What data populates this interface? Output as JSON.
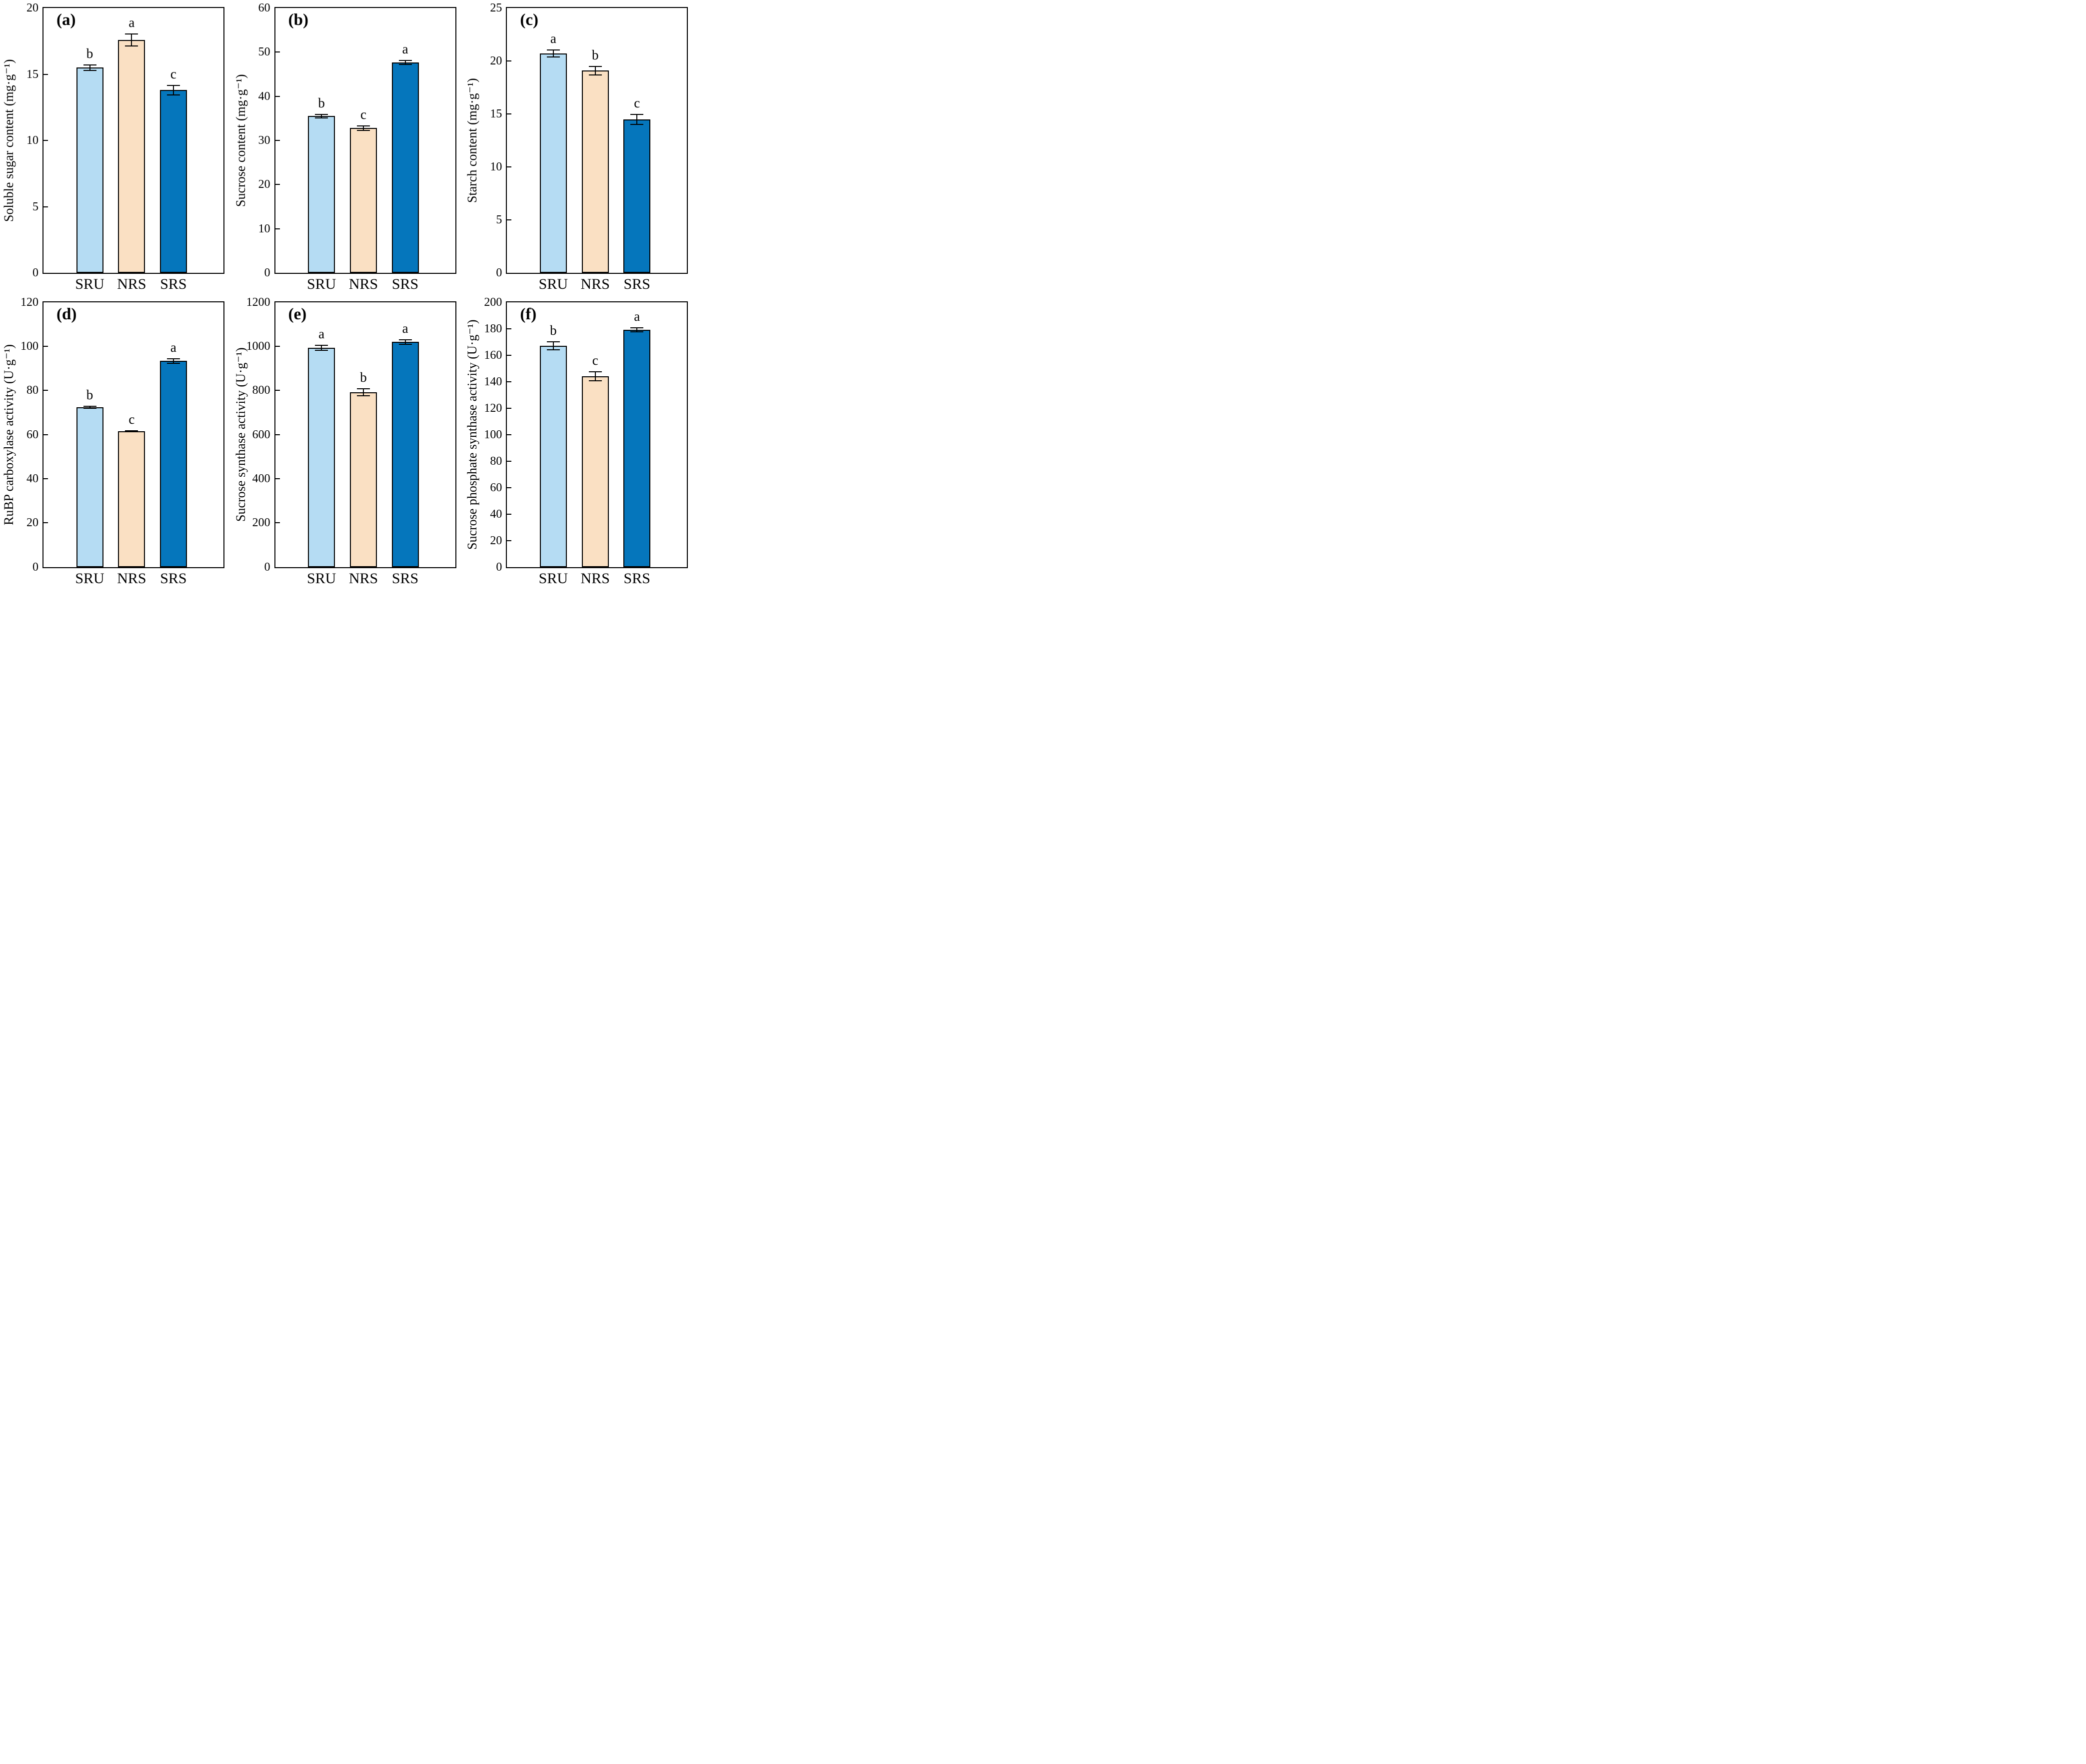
{
  "style": {
    "background": "#ffffff",
    "bar_fill_colors": [
      "#B5DCF3",
      "#FAE0C3",
      "#0576BC"
    ],
    "bar_edge_color": "#000000",
    "axis_color": "#000000",
    "text_color": "#000000"
  },
  "chart_data": [
    {
      "type": "bar",
      "panel_label": "(a)",
      "title": "",
      "ylabel": "Soluble sugar content (mg·g⁻¹)",
      "xlabel": "",
      "ylim": [
        0,
        20
      ],
      "yticks": [
        0,
        5,
        10,
        15,
        20
      ],
      "categories": [
        "SRU",
        "NRS",
        "SRS"
      ],
      "values": [
        15.5,
        17.6,
        13.8
      ],
      "errors": [
        0.2,
        0.45,
        0.35
      ],
      "sig_letters": [
        "b",
        "a",
        "c"
      ],
      "grid": false,
      "legend": false
    },
    {
      "type": "bar",
      "panel_label": "(b)",
      "title": "",
      "ylabel": "Sucrose content (mg·g⁻¹)",
      "xlabel": "",
      "ylim": [
        0,
        60
      ],
      "yticks": [
        0,
        10,
        20,
        30,
        40,
        50,
        60
      ],
      "categories": [
        "SRU",
        "NRS",
        "SRS"
      ],
      "values": [
        35.5,
        32.8,
        47.7
      ],
      "errors": [
        0.4,
        0.5,
        0.45
      ],
      "sig_letters": [
        "b",
        "c",
        "a"
      ],
      "grid": false,
      "legend": false
    },
    {
      "type": "bar",
      "panel_label": "(c)",
      "title": "",
      "ylabel": "Starch content (mg·g⁻¹)",
      "xlabel": "",
      "ylim": [
        0,
        25
      ],
      "yticks": [
        0,
        5,
        10,
        15,
        20,
        25
      ],
      "categories": [
        "SRU",
        "NRS",
        "SRS"
      ],
      "values": [
        20.7,
        19.1,
        14.5
      ],
      "errors": [
        0.33,
        0.4,
        0.47
      ],
      "sig_letters": [
        "a",
        "b",
        "c"
      ],
      "grid": false,
      "legend": false
    },
    {
      "type": "bar",
      "panel_label": "(d)",
      "title": "",
      "ylabel": "RuBP carboxylase activity (U·g⁻¹)",
      "xlabel": "",
      "ylim": [
        0,
        120
      ],
      "yticks": [
        0,
        20,
        40,
        60,
        80,
        100,
        120
      ],
      "categories": [
        "SRU",
        "NRS",
        "SRS"
      ],
      "values": [
        72.3,
        61.5,
        93.3
      ],
      "errors": [
        0.5,
        0.3,
        1.0
      ],
      "sig_letters": [
        "b",
        "c",
        "a"
      ],
      "grid": false,
      "legend": false
    },
    {
      "type": "bar",
      "panel_label": "(e)",
      "title": "",
      "ylabel": "Sucrose synthase activity (U·g⁻¹)",
      "xlabel": "",
      "ylim": [
        0,
        1200
      ],
      "yticks": [
        0,
        200,
        400,
        600,
        800,
        1000,
        1200
      ],
      "categories": [
        "SRU",
        "NRS",
        "SRS"
      ],
      "values": [
        993,
        791,
        1019
      ],
      "errors": [
        12,
        16,
        11
      ],
      "sig_letters": [
        "a",
        "b",
        "a"
      ],
      "grid": false,
      "legend": false
    },
    {
      "type": "bar",
      "panel_label": "(f)",
      "title": "",
      "ylabel": "Sucrose phosphate synthase activity (U·g⁻¹)",
      "xlabel": "",
      "ylim": [
        0,
        200
      ],
      "yticks": [
        0,
        20,
        40,
        60,
        80,
        100,
        120,
        140,
        160,
        180,
        200
      ],
      "categories": [
        "SRU",
        "NRS",
        "SRS"
      ],
      "values": [
        167,
        144,
        179
      ],
      "errors": [
        3,
        3.5,
        1.5
      ],
      "sig_letters": [
        "b",
        "c",
        "a"
      ],
      "grid": false,
      "legend": false
    }
  ]
}
